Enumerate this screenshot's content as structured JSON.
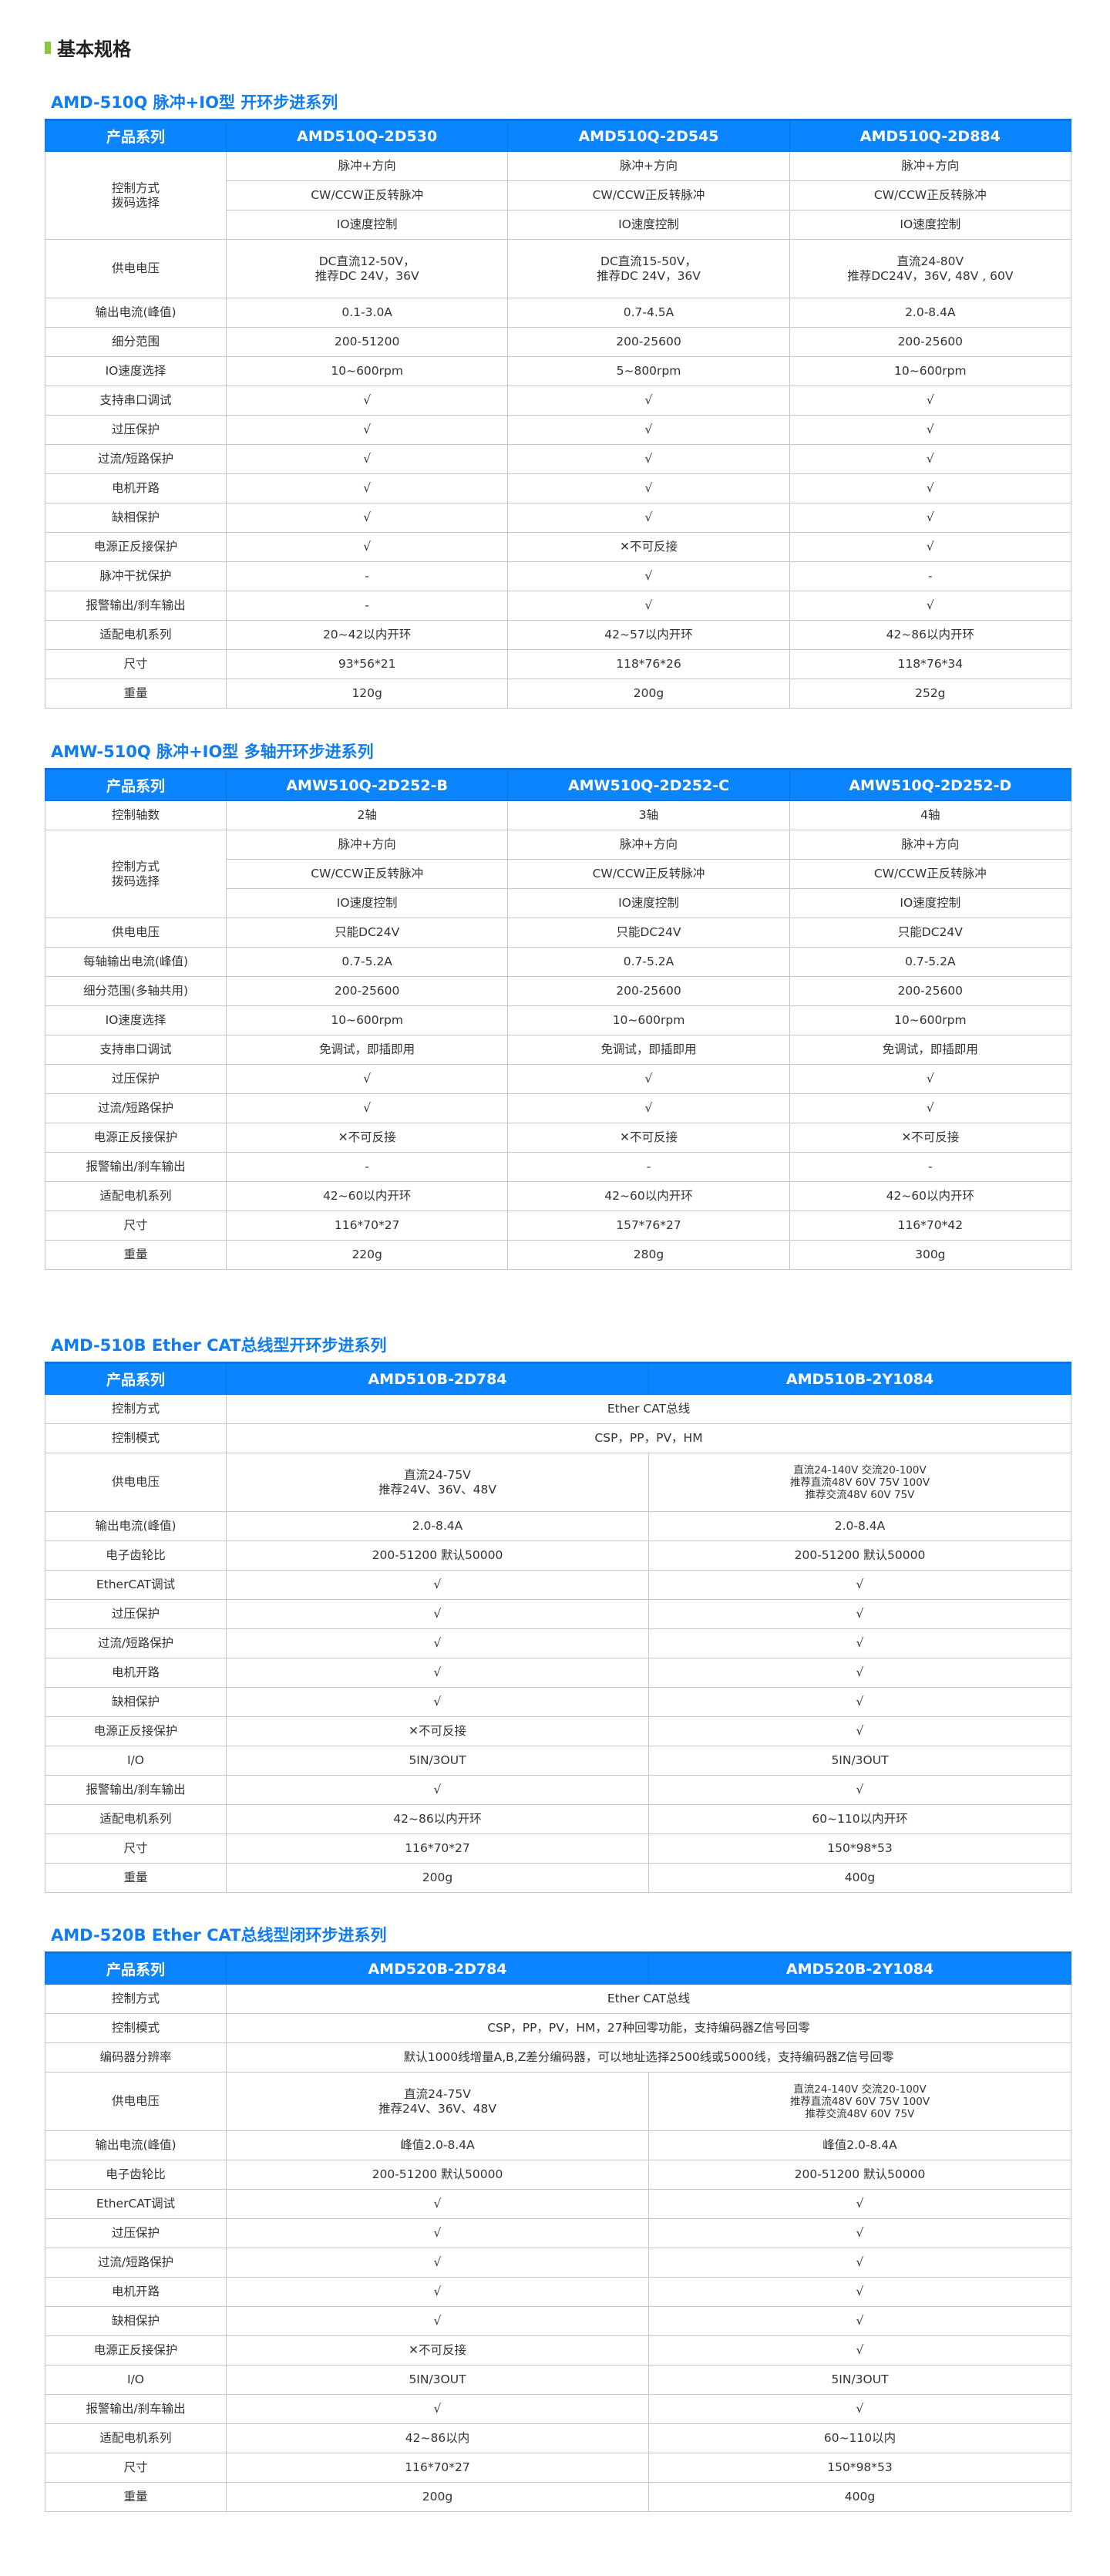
{
  "page_title": "基本规格",
  "colors": {
    "accent_green": "#8cc63f",
    "header_blue": "#0a84ff",
    "title_blue": "#0f7cf0"
  },
  "sections": [
    {
      "title": "AMD-510Q  脉冲+IO型 开环步进系列",
      "header": [
        "产品系列",
        "AMD510Q-2D530",
        "AMD510Q-2D545",
        "AMD510Q-2D884"
      ],
      "rows": [
        {
          "label": "控制方式\n拨码选择",
          "label_rowspan": 3,
          "cells": [
            "脉冲+方向",
            "脉冲+方向",
            "脉冲+方向"
          ]
        },
        {
          "cells": [
            "CW/CCW正反转脉冲",
            "CW/CCW正反转脉冲",
            "CW/CCW正反转脉冲"
          ]
        },
        {
          "cells": [
            "IO速度控制",
            "IO速度控制",
            "IO速度控制"
          ]
        },
        {
          "label": "供电电压",
          "tall": true,
          "cells": [
            "DC直流12-50V，\n推荐DC 24V，36V",
            "DC直流15-50V，\n推荐DC 24V，36V",
            "直流24-80V\n推荐DC24V，36V, 48V , 60V"
          ]
        },
        {
          "label": "输出电流(峰值)",
          "cells": [
            "0.1-3.0A",
            "0.7-4.5A",
            "2.0-8.4A"
          ]
        },
        {
          "label": "细分范围",
          "cells": [
            "200-51200",
            "200-25600",
            "200-25600"
          ]
        },
        {
          "label": "IO速度选择",
          "cells": [
            "10~600rpm",
            "5~800rpm",
            "10~600rpm"
          ]
        },
        {
          "label": "支持串口调试",
          "cells": [
            "√",
            "√",
            "√"
          ]
        },
        {
          "label": "过压保护",
          "cells": [
            "√",
            "√",
            "√"
          ]
        },
        {
          "label": "过流/短路保护",
          "cells": [
            "√",
            "√",
            "√"
          ]
        },
        {
          "label": "电机开路",
          "cells": [
            "√",
            "√",
            "√"
          ]
        },
        {
          "label": "缺相保护",
          "cells": [
            "√",
            "√",
            "√"
          ]
        },
        {
          "label": "电源正反接保护",
          "cells": [
            "√",
            "✕不可反接",
            "√"
          ]
        },
        {
          "label": "脉冲干扰保护",
          "cells": [
            "-",
            "√",
            "-"
          ]
        },
        {
          "label": "报警输出/刹车输出",
          "cells": [
            "-",
            "√",
            "√"
          ]
        },
        {
          "label": "适配电机系列",
          "cells": [
            "20~42以内开环",
            "42~57以内开环",
            "42~86以内开环"
          ]
        },
        {
          "label": "尺寸",
          "cells": [
            "93*56*21",
            "118*76*26",
            "118*76*34"
          ]
        },
        {
          "label": "重量",
          "cells": [
            "120g",
            "200g",
            "252g"
          ]
        }
      ]
    },
    {
      "title": "AMW-510Q  脉冲+IO型 多轴开环步进系列",
      "header": [
        "产品系列",
        "AMW510Q-2D252-B",
        "AMW510Q-2D252-C",
        "AMW510Q-2D252-D"
      ],
      "rows": [
        {
          "label": "控制轴数",
          "cells": [
            "2轴",
            "3轴",
            "4轴"
          ]
        },
        {
          "label": "控制方式\n拨码选择",
          "label_rowspan": 3,
          "cells": [
            "脉冲+方向",
            "脉冲+方向",
            "脉冲+方向"
          ]
        },
        {
          "cells": [
            "CW/CCW正反转脉冲",
            "CW/CCW正反转脉冲",
            "CW/CCW正反转脉冲"
          ]
        },
        {
          "cells": [
            "IO速度控制",
            "IO速度控制",
            "IO速度控制"
          ]
        },
        {
          "label": "供电电压",
          "cells": [
            "只能DC24V",
            "只能DC24V",
            "只能DC24V"
          ]
        },
        {
          "label": "每轴输出电流(峰值)",
          "cells": [
            "0.7-5.2A",
            "0.7-5.2A",
            "0.7-5.2A"
          ]
        },
        {
          "label": "细分范围(多轴共用)",
          "cells": [
            "200-25600",
            "200-25600",
            "200-25600"
          ]
        },
        {
          "label": "IO速度选择",
          "cells": [
            "10~600rpm",
            "10~600rpm",
            "10~600rpm"
          ]
        },
        {
          "label": "支持串口调试",
          "cells": [
            "免调试，即插即用",
            "免调试，即插即用",
            "免调试，即插即用"
          ]
        },
        {
          "label": "过压保护",
          "cells": [
            "√",
            "√",
            "√"
          ]
        },
        {
          "label": "过流/短路保护",
          "cells": [
            "√",
            "√",
            "√"
          ]
        },
        {
          "label": "电源正反接保护",
          "cells": [
            "✕不可反接",
            "✕不可反接",
            "✕不可反接"
          ]
        },
        {
          "label": "报警输出/刹车输出",
          "cells": [
            "-",
            "-",
            "-"
          ]
        },
        {
          "label": "适配电机系列",
          "cells": [
            "42~60以内开环",
            "42~60以内开环",
            "42~60以内开环"
          ]
        },
        {
          "label": "尺寸",
          "cells": [
            "116*70*27",
            "157*76*27",
            "116*70*42"
          ]
        },
        {
          "label": "重量",
          "cells": [
            "220g",
            "280g",
            "300g"
          ]
        }
      ]
    },
    {
      "title": "AMD-510B Ether CAT总线型开环步进系列",
      "header": [
        "产品系列",
        "AMD510B-2D784",
        "AMD510B-2Y1084"
      ],
      "rows": [
        {
          "label": "控制方式",
          "span_all": true,
          "cells": [
            "Ether CAT总线"
          ]
        },
        {
          "label": "控制模式",
          "span_all": true,
          "cells": [
            "CSP，PP，PV，HM"
          ]
        },
        {
          "label": "供电电压",
          "tall": true,
          "small_last": true,
          "cells": [
            "直流24-75V\n推荐24V、36V、48V",
            "直流24-140V 交流20-100V\n推荐直流48V 60V 75V 100V\n推荐交流48V 60V 75V"
          ]
        },
        {
          "label": "输出电流(峰值)",
          "cells": [
            "2.0-8.4A",
            "2.0-8.4A"
          ]
        },
        {
          "label": "电子齿轮比",
          "cells": [
            "200-51200 默认50000",
            "200-51200 默认50000"
          ]
        },
        {
          "label": "EtherCAT调试",
          "cells": [
            "√",
            "√"
          ]
        },
        {
          "label": "过压保护",
          "cells": [
            "√",
            "√"
          ]
        },
        {
          "label": "过流/短路保护",
          "cells": [
            "√",
            "√"
          ]
        },
        {
          "label": "电机开路",
          "cells": [
            "√",
            "√"
          ]
        },
        {
          "label": "缺相保护",
          "cells": [
            "√",
            "√"
          ]
        },
        {
          "label": "电源正反接保护",
          "cells": [
            "✕不可反接",
            "√"
          ]
        },
        {
          "label": "I/O",
          "cells": [
            "5IN/3OUT",
            "5IN/3OUT"
          ]
        },
        {
          "label": "报警输出/刹车输出",
          "cells": [
            "√",
            "√"
          ]
        },
        {
          "label": "适配电机系列",
          "cells": [
            "42~86以内开环",
            "60~110以内开环"
          ]
        },
        {
          "label": "尺寸",
          "cells": [
            "116*70*27",
            "150*98*53"
          ]
        },
        {
          "label": "重量",
          "cells": [
            "200g",
            "400g"
          ]
        }
      ]
    },
    {
      "title": "AMD-520B Ether CAT总线型闭环步进系列",
      "header": [
        "产品系列",
        "AMD520B-2D784",
        "AMD520B-2Y1084"
      ],
      "rows": [
        {
          "label": "控制方式",
          "span_all": true,
          "cells": [
            "Ether CAT总线"
          ]
        },
        {
          "label": "控制模式",
          "span_all": true,
          "cells": [
            "CSP，PP，PV，HM，27种回零功能，支持编码器Z信号回零"
          ]
        },
        {
          "label": "编码器分辨率",
          "span_all": true,
          "cells": [
            "默认1000线增量A,B,Z差分编码器，可以地址选择2500线或5000线，支持编码器Z信号回零"
          ]
        },
        {
          "label": "供电电压",
          "tall": true,
          "small_last": true,
          "cells": [
            "直流24-75V\n推荐24V、36V、48V",
            "直流24-140V 交流20-100V\n推荐直流48V 60V 75V 100V\n推荐交流48V 60V 75V"
          ]
        },
        {
          "label": "输出电流(峰值)",
          "cells": [
            "峰值2.0-8.4A",
            "峰值2.0-8.4A"
          ]
        },
        {
          "label": "电子齿轮比",
          "cells": [
            "200-51200 默认50000",
            "200-51200 默认50000"
          ]
        },
        {
          "label": "EtherCAT调试",
          "cells": [
            "√",
            "√"
          ]
        },
        {
          "label": "过压保护",
          "cells": [
            "√",
            "√"
          ]
        },
        {
          "label": "过流/短路保护",
          "cells": [
            "√",
            "√"
          ]
        },
        {
          "label": "电机开路",
          "cells": [
            "√",
            "√"
          ]
        },
        {
          "label": "缺相保护",
          "cells": [
            "√",
            "√"
          ]
        },
        {
          "label": "电源正反接保护",
          "cells": [
            "✕不可反接",
            "√"
          ]
        },
        {
          "label": "I/O",
          "cells": [
            "5IN/3OUT",
            "5IN/3OUT"
          ]
        },
        {
          "label": "报警输出/刹车输出",
          "cells": [
            "√",
            "√"
          ]
        },
        {
          "label": "适配电机系列",
          "cells": [
            "42~86以内",
            "60~110以内"
          ]
        },
        {
          "label": "尺寸",
          "cells": [
            "116*70*27",
            "150*98*53"
          ]
        },
        {
          "label": "重量",
          "cells": [
            "200g",
            "400g"
          ]
        }
      ]
    }
  ]
}
